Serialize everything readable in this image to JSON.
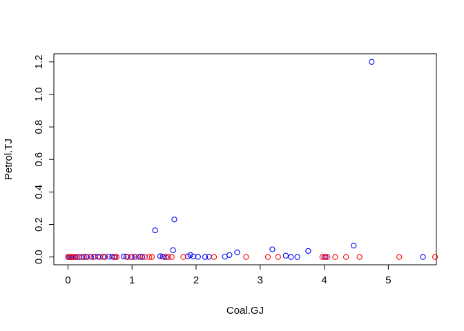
{
  "chart_data": {
    "type": "scatter",
    "title": "",
    "xlabel": "Coal.GJ",
    "ylabel": "Petrol.TJ",
    "xlim": [
      -0.22,
      5.75
    ],
    "ylim": [
      -0.048,
      1.25
    ],
    "x_ticks": [
      0,
      1,
      2,
      3,
      4,
      5
    ],
    "y_ticks": [
      0.0,
      0.2,
      0.4,
      0.6,
      0.8,
      1.0,
      1.2
    ],
    "x_tick_labels": [
      "0",
      "1",
      "2",
      "3",
      "4",
      "5"
    ],
    "y_tick_labels": [
      "0.0",
      "0.2",
      "0.4",
      "0.6",
      "0.8",
      "1.0",
      "1.2"
    ],
    "grid": false,
    "series": [
      {
        "color": "#0000ff",
        "points": [
          [
            0.0,
            0.0
          ],
          [
            0.02,
            0.0
          ],
          [
            0.05,
            0.0
          ],
          [
            0.08,
            0.0
          ],
          [
            0.12,
            0.0
          ],
          [
            0.18,
            0.0
          ],
          [
            0.25,
            0.0
          ],
          [
            0.28,
            0.001
          ],
          [
            0.36,
            0.001
          ],
          [
            0.42,
            0.002
          ],
          [
            0.47,
            0.002
          ],
          [
            0.55,
            0.001
          ],
          [
            0.64,
            0.002
          ],
          [
            0.69,
            0.002
          ],
          [
            0.74,
            0.0
          ],
          [
            0.87,
            0.003
          ],
          [
            0.91,
            0.002
          ],
          [
            0.99,
            0.0
          ],
          [
            1.04,
            0.001
          ],
          [
            1.13,
            0.002
          ],
          [
            1.16,
            0.0
          ],
          [
            1.36,
            0.164
          ],
          [
            1.44,
            0.005
          ],
          [
            1.48,
            0.002
          ],
          [
            1.53,
            0.0
          ],
          [
            1.64,
            0.042
          ],
          [
            1.66,
            0.231
          ],
          [
            1.87,
            0.004
          ],
          [
            1.91,
            0.012
          ],
          [
            1.96,
            0.003
          ],
          [
            2.03,
            0.001
          ],
          [
            2.14,
            0.0
          ],
          [
            2.2,
            0.001
          ],
          [
            2.45,
            0.002
          ],
          [
            2.52,
            0.012
          ],
          [
            2.64,
            0.028
          ],
          [
            3.19,
            0.047
          ],
          [
            3.4,
            0.008
          ],
          [
            3.48,
            0.0
          ],
          [
            3.58,
            0.0
          ],
          [
            3.75,
            0.037
          ],
          [
            4.02,
            0.0
          ],
          [
            4.46,
            0.07
          ],
          [
            4.74,
            1.2
          ],
          [
            5.54,
            0.0
          ]
        ]
      },
      {
        "color": "#ff0000",
        "points": [
          [
            0.0,
            0.0
          ],
          [
            0.03,
            0.0
          ],
          [
            0.06,
            0.0
          ],
          [
            0.1,
            0.0
          ],
          [
            0.15,
            0.0
          ],
          [
            0.22,
            0.0
          ],
          [
            0.3,
            0.0
          ],
          [
            0.4,
            0.0
          ],
          [
            0.5,
            0.0
          ],
          [
            0.58,
            0.0
          ],
          [
            0.72,
            0.0
          ],
          [
            0.76,
            0.0
          ],
          [
            0.93,
            0.0
          ],
          [
            1.0,
            0.0
          ],
          [
            1.1,
            0.0
          ],
          [
            1.2,
            0.0
          ],
          [
            1.27,
            0.0
          ],
          [
            1.31,
            0.0
          ],
          [
            1.5,
            0.0
          ],
          [
            1.57,
            0.0
          ],
          [
            1.62,
            0.0
          ],
          [
            1.8,
            0.0
          ],
          [
            2.28,
            0.0
          ],
          [
            2.78,
            0.0
          ],
          [
            3.12,
            0.0
          ],
          [
            3.28,
            0.0
          ],
          [
            3.97,
            0.0
          ],
          [
            4.0,
            0.0
          ],
          [
            4.05,
            0.0
          ],
          [
            4.17,
            0.0
          ],
          [
            4.34,
            0.0
          ],
          [
            4.55,
            0.0
          ],
          [
            5.17,
            0.0
          ],
          [
            5.73,
            0.0
          ]
        ]
      }
    ]
  }
}
